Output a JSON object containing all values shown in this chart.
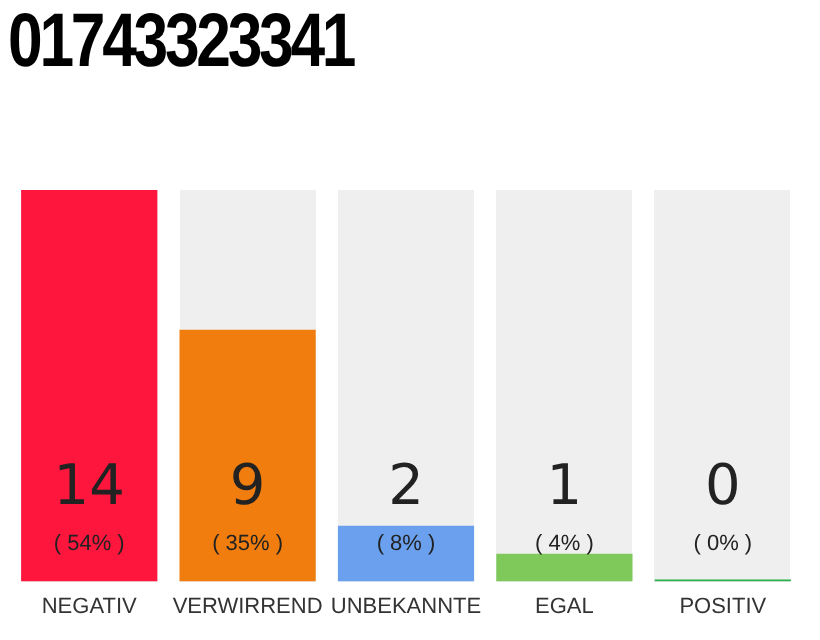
{
  "chart_data": {
    "type": "bar",
    "title": "01743323341",
    "categories": [
      "NEGATIV",
      "VERWIRREND",
      "UNBEKANNTE",
      "EGAL",
      "POSITIV"
    ],
    "values": [
      14,
      9,
      2,
      1,
      0
    ],
    "colors": [
      "#ff163c",
      "#f07d0e",
      "#6aa0ee",
      "#7ec95a",
      "#2bb04a"
    ],
    "data_labels": true,
    "annotations": [
      "( 54% )",
      "( 35% )",
      "( 8% )",
      "( 4% )",
      "( 0% )"
    ],
    "grid": false,
    "legend": false
  }
}
